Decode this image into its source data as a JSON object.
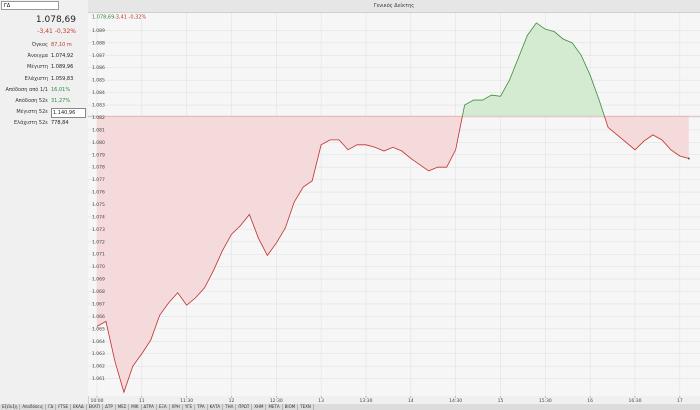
{
  "search": {
    "value": "ΓΔ"
  },
  "panel": {
    "last": "1.078,69",
    "change": "-3,41  -0,32%",
    "rows": [
      {
        "label": "Όγκος",
        "value": "87,10 m",
        "color": "#c0392b"
      },
      {
        "label": "Άνοιγμα",
        "value": "1.074,92",
        "color": "#222222"
      },
      {
        "label": "Μέγιστη",
        "value": "1.089,96",
        "color": "#222222"
      },
      {
        "label": "Ελάχιστη",
        "value": "1.059,83",
        "color": "#222222"
      },
      {
        "label": "Απόδοση από 1/1",
        "value": "16,01%",
        "color": "#2e8b3a"
      },
      {
        "label": "Απόδοση 52ε",
        "value": "31,27%",
        "color": "#2e8b3a"
      },
      {
        "label": "Μέγιστη 52ε",
        "value": "1.140,96",
        "color": "#222222"
      },
      {
        "label": "Ελάχιστη 52ε",
        "value": "778,84",
        "color": "#222222"
      }
    ]
  },
  "chart_data": {
    "type": "area",
    "title": "Γενικός Δείκτης",
    "header": {
      "last": "1.078,69",
      "change": "-3,41 -0,32%"
    },
    "baseline": 1082.1,
    "colors": {
      "up": "#3a8f3a",
      "down": "#c03030",
      "up_fill": "#d5ebd1",
      "down_fill": "#f4dada"
    },
    "grid": true,
    "xlim": [
      -0.2,
      13.45
    ],
    "ylim": [
      1059.6,
      1090.4
    ],
    "xticks": [
      {
        "value": 0,
        "label": "10:00"
      },
      {
        "value": 1,
        "label": "11"
      },
      {
        "value": 2,
        "label": "11:30"
      },
      {
        "value": 3,
        "label": "12"
      },
      {
        "value": 4,
        "label": "12:30"
      },
      {
        "value": 5,
        "label": "13"
      },
      {
        "value": 6,
        "label": "13:30"
      },
      {
        "value": 7,
        "label": "14"
      },
      {
        "value": 8,
        "label": "14:30"
      },
      {
        "value": 9,
        "label": "15"
      },
      {
        "value": 10,
        "label": "15:30"
      },
      {
        "value": 11,
        "label": "16"
      },
      {
        "value": 12,
        "label": "16:30"
      },
      {
        "value": 13,
        "label": "17"
      }
    ],
    "yticks": [
      {
        "value": 1061,
        "label": "1.061"
      },
      {
        "value": 1062,
        "label": "1.062"
      },
      {
        "value": 1063,
        "label": "1.063"
      },
      {
        "value": 1064,
        "label": "1.064"
      },
      {
        "value": 1065,
        "label": "1.065"
      },
      {
        "value": 1066,
        "label": "1.066"
      },
      {
        "value": 1067,
        "label": "1.067"
      },
      {
        "value": 1068,
        "label": "1.068"
      },
      {
        "value": 1069,
        "label": "1.069"
      },
      {
        "value": 1070,
        "label": "1.070"
      },
      {
        "value": 1071,
        "label": "1.071"
      },
      {
        "value": 1072,
        "label": "1.072"
      },
      {
        "value": 1073,
        "label": "1.073"
      },
      {
        "value": 1074,
        "label": "1.074"
      },
      {
        "value": 1075,
        "label": "1.075"
      },
      {
        "value": 1076,
        "label": "1.076"
      },
      {
        "value": 1077,
        "label": "1.077"
      },
      {
        "value": 1078,
        "label": "1.078"
      },
      {
        "value": 1079,
        "label": "1.079"
      },
      {
        "value": 1080,
        "label": "1.080"
      },
      {
        "value": 1081,
        "label": "1.081"
      },
      {
        "value": 1082,
        "label": "1.082"
      },
      {
        "value": 1083,
        "label": "1.083"
      },
      {
        "value": 1084,
        "label": "1.084"
      },
      {
        "value": 1085,
        "label": "1.085"
      },
      {
        "value": 1086,
        "label": "1.086"
      },
      {
        "value": 1087,
        "label": "1.087"
      },
      {
        "value": 1088,
        "label": "1.088"
      },
      {
        "value": 1089,
        "label": "1.089"
      }
    ],
    "x": [
      0,
      0.2,
      0.4,
      0.6,
      0.8,
      1.0,
      1.2,
      1.4,
      1.6,
      1.8,
      2.0,
      2.2,
      2.4,
      2.6,
      2.8,
      3.0,
      3.2,
      3.4,
      3.6,
      3.8,
      4.0,
      4.2,
      4.4,
      4.6,
      4.8,
      5.0,
      5.2,
      5.4,
      5.6,
      5.8,
      6.0,
      6.2,
      6.4,
      6.6,
      6.8,
      7.0,
      7.2,
      7.4,
      7.6,
      7.8,
      8.0,
      8.2,
      8.4,
      8.6,
      8.8,
      9.0,
      9.2,
      9.4,
      9.6,
      9.8,
      10.0,
      10.2,
      10.4,
      10.6,
      10.8,
      11.0,
      11.2,
      11.4,
      11.6,
      11.8,
      12.0,
      12.2,
      12.4,
      12.6,
      12.8,
      13.0,
      13.2
    ],
    "values": [
      1065.2,
      1065.6,
      1062.4,
      1059.9,
      1062.0,
      1063.0,
      1064.1,
      1066.1,
      1067.1,
      1067.9,
      1066.9,
      1067.5,
      1068.3,
      1069.7,
      1071.3,
      1072.6,
      1073.3,
      1074.2,
      1072.3,
      1070.9,
      1071.9,
      1073.1,
      1075.2,
      1076.4,
      1076.9,
      1079.8,
      1080.2,
      1080.2,
      1079.4,
      1079.8,
      1079.8,
      1079.6,
      1079.3,
      1079.6,
      1079.3,
      1078.7,
      1078.2,
      1077.7,
      1078.0,
      1078.0,
      1079.4,
      1083.0,
      1083.4,
      1083.4,
      1083.8,
      1083.7,
      1085.0,
      1086.8,
      1088.6,
      1089.6,
      1089.1,
      1088.9,
      1088.3,
      1088.0,
      1087.0,
      1085.4,
      1083.4,
      1081.2,
      1080.6,
      1080.0,
      1079.4,
      1080.1,
      1080.6,
      1080.2,
      1079.4,
      1078.9,
      1078.7
    ]
  },
  "tabs": [
    "Εξέλιξη",
    "Αποδόσεις",
    "ΓΔ",
    "FTSE",
    "ΕΚΑΔ",
    "ΕΚΑΤΙ",
    "ΔΤΡ",
    "ΜΕΣ",
    "ΜΙΚ",
    "ΔΤΡΑ",
    "ΕΞΑ",
    "ΧΡΗ",
    "ΥΓΕ",
    "ΤΡΑ",
    "ΚΑΤΑ",
    "ΤΗΛ",
    "ΠΡΩΤ",
    "ΧΗΜ",
    "ΜΕΤΑ",
    "ΒΙΟΜ",
    "ΤΕΧΝ"
  ]
}
